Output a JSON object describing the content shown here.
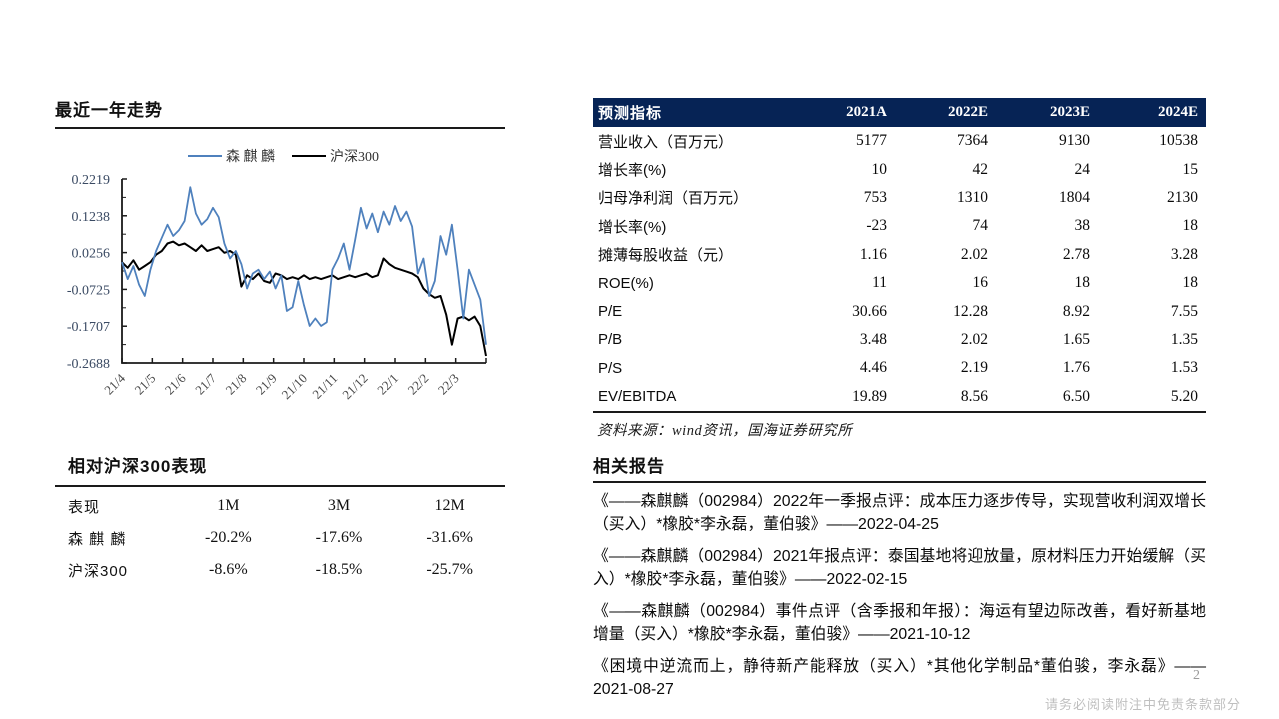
{
  "page": {
    "number": "2",
    "footer": "请务必阅读附注中免责条款部分"
  },
  "trend_section": {
    "title": "最近一年走势"
  },
  "chart_data": {
    "type": "line",
    "title": "最近一年走势",
    "xlabel": "",
    "ylabel": "",
    "grid": false,
    "legend_position": "top",
    "ylim": [
      -0.2688,
      0.2219
    ],
    "y_tick_labels": [
      "0.2219",
      "0.1238",
      "0.0256",
      "-0.0725",
      "-0.1707",
      "-0.2688"
    ],
    "x_tick_labels": [
      "21/4",
      "21/5",
      "21/6",
      "21/7",
      "21/8",
      "21/9",
      "21/10",
      "21/11",
      "21/12",
      "22/1",
      "22/2",
      "22/3"
    ],
    "series": [
      {
        "name": "森 麒 麟",
        "color": "#4f81bd",
        "values": [
          0.0,
          -0.045,
          -0.01,
          -0.06,
          -0.09,
          -0.02,
          0.03,
          0.065,
          0.1,
          0.07,
          0.085,
          0.11,
          0.2,
          0.13,
          0.1,
          0.115,
          0.145,
          0.12,
          0.05,
          0.01,
          0.03,
          -0.005,
          -0.07,
          -0.03,
          -0.02,
          -0.045,
          -0.025,
          -0.07,
          -0.035,
          -0.13,
          -0.12,
          -0.05,
          -0.115,
          -0.17,
          -0.15,
          -0.17,
          -0.16,
          -0.02,
          0.01,
          0.05,
          -0.02,
          0.06,
          0.145,
          0.09,
          0.13,
          0.08,
          0.135,
          0.1,
          0.15,
          0.11,
          0.135,
          0.095,
          -0.03,
          0.01,
          -0.09,
          -0.05,
          0.07,
          0.02,
          0.1,
          -0.02,
          -0.15,
          -0.02,
          -0.06,
          -0.1,
          -0.22
        ]
      },
      {
        "name": "沪深300",
        "color": "#000000",
        "values": [
          0.0,
          -0.015,
          0.005,
          -0.02,
          -0.01,
          0.0,
          0.02,
          0.03,
          0.05,
          0.055,
          0.045,
          0.05,
          0.04,
          0.03,
          0.045,
          0.03,
          0.035,
          0.04,
          0.025,
          0.03,
          0.02,
          -0.065,
          -0.035,
          -0.045,
          -0.03,
          -0.05,
          -0.055,
          -0.03,
          -0.035,
          -0.045,
          -0.04,
          -0.045,
          -0.035,
          -0.045,
          -0.04,
          -0.045,
          -0.04,
          -0.035,
          -0.045,
          -0.04,
          -0.035,
          -0.04,
          -0.035,
          -0.03,
          -0.04,
          -0.035,
          0.01,
          -0.005,
          -0.015,
          -0.02,
          -0.025,
          -0.03,
          -0.04,
          -0.07,
          -0.085,
          -0.095,
          -0.09,
          -0.14,
          -0.22,
          -0.15,
          -0.145,
          -0.155,
          -0.145,
          -0.17,
          -0.25
        ]
      }
    ]
  },
  "relative_performance": {
    "title": "相对沪深300表现",
    "columns": [
      "表现",
      "1M",
      "3M",
      "12M"
    ],
    "rows": [
      {
        "name": "森 麒 麟",
        "values": [
          "-20.2%",
          "-17.6%",
          "-31.6%"
        ]
      },
      {
        "name": "沪深300",
        "values": [
          "-8.6%",
          "-18.5%",
          "-25.7%"
        ]
      }
    ]
  },
  "forecast_table": {
    "header": [
      "预测指标",
      "2021A",
      "2022E",
      "2023E",
      "2024E"
    ],
    "header_bg": "#062355",
    "rows": [
      {
        "label": "营业收入（百万元）",
        "values": [
          "5177",
          "7364",
          "9130",
          "10538"
        ]
      },
      {
        "label": "增长率(%)",
        "values": [
          "10",
          "42",
          "24",
          "15"
        ]
      },
      {
        "label": "归母净利润（百万元）",
        "values": [
          "753",
          "1310",
          "1804",
          "2130"
        ]
      },
      {
        "label": "增长率(%)",
        "values": [
          "-23",
          "74",
          "38",
          "18"
        ]
      },
      {
        "label": "摊薄每股收益（元）",
        "values": [
          "1.16",
          "2.02",
          "2.78",
          "3.28"
        ]
      },
      {
        "label": "ROE(%)",
        "values": [
          "11",
          "16",
          "18",
          "18"
        ]
      },
      {
        "label": "P/E",
        "values": [
          "30.66",
          "12.28",
          "8.92",
          "7.55"
        ]
      },
      {
        "label": "P/B",
        "values": [
          "3.48",
          "2.02",
          "1.65",
          "1.35"
        ]
      },
      {
        "label": "P/S",
        "values": [
          "4.46",
          "2.19",
          "1.76",
          "1.53"
        ]
      },
      {
        "label": "EV/EBITDA",
        "values": [
          "19.89",
          "8.56",
          "6.50",
          "5.20"
        ]
      }
    ],
    "source": "资料来源：wind资讯，国海证券研究所"
  },
  "reports_section": {
    "title": "相关报告",
    "items": [
      "《——森麒麟（002984）2022年一季报点评：成本压力逐步传导，实现营收利润双增长（买入）*橡胶*李永磊，董伯骏》——2022-04-25",
      "《——森麒麟（002984）2021年报点评：泰国基地将迎放量，原材料压力开始缓解（买入）*橡胶*李永磊，董伯骏》——2022-02-15",
      "《——森麒麟（002984）事件点评（含季报和年报）：海运有望边际改善，看好新基地增量（买入）*橡胶*李永磊，董伯骏》——2021-10-12",
      "《困境中逆流而上，静待新产能释放（买入）*其他化学制品*董伯骏，李永磊》——2021-08-27"
    ]
  }
}
